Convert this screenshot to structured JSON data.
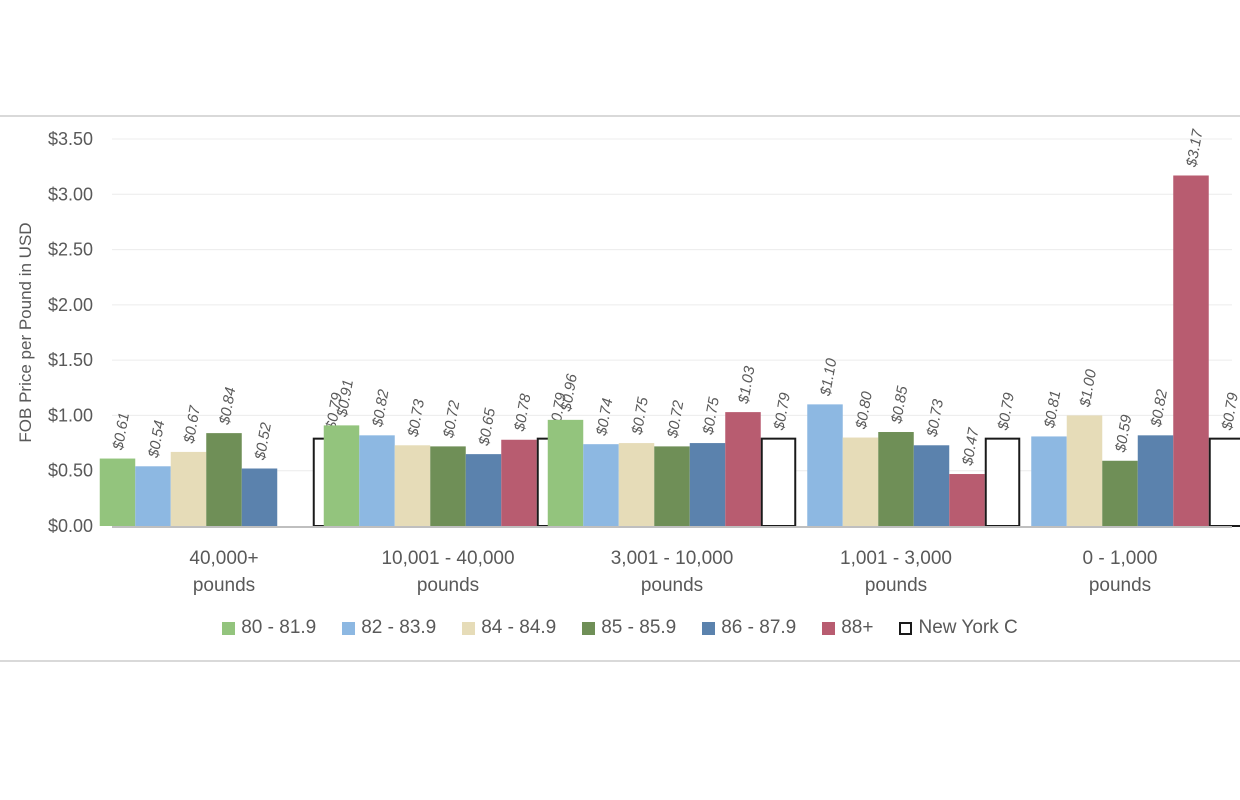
{
  "chart_data": {
    "type": "bar",
    "title": "",
    "xlabel": "",
    "ylabel": "FOB Price per Pound in USD",
    "ylim": [
      0,
      3.5
    ],
    "yticks": [
      "$0.00",
      "$0.50",
      "$1.00",
      "$1.50",
      "$2.00",
      "$2.50",
      "$3.00",
      "$3.50"
    ],
    "grid": true,
    "legend_position": "bottom",
    "categories": [
      [
        "40,000+",
        "pounds"
      ],
      [
        "10,001 - 40,000",
        "pounds"
      ],
      [
        "3,001 - 10,000",
        "pounds"
      ],
      [
        "1,001 - 3,000",
        "pounds"
      ],
      [
        "0 - 1,000",
        "pounds"
      ]
    ],
    "series": [
      {
        "name": "80 - 81.9",
        "color": "#93c47d",
        "values": [
          0.61,
          0.91,
          0.96,
          null,
          null
        ],
        "labels": [
          "$0.61",
          "$0.91",
          "$0.96",
          null,
          null
        ]
      },
      {
        "name": "82 - 83.9",
        "color": "#8db8e2",
        "values": [
          0.54,
          0.82,
          0.74,
          1.1,
          0.81
        ],
        "labels": [
          "$0.54",
          "$0.82",
          "$0.74",
          "$1.10",
          "$0.81"
        ]
      },
      {
        "name": "84 - 84.9",
        "color": "#e6dcb8",
        "values": [
          0.67,
          0.73,
          0.75,
          0.8,
          1.0
        ],
        "labels": [
          "$0.67",
          "$0.73",
          "$0.75",
          "$0.80",
          "$1.00"
        ]
      },
      {
        "name": "85 - 85.9",
        "color": "#6f8f57",
        "values": [
          0.84,
          0.72,
          0.72,
          0.85,
          0.59
        ],
        "labels": [
          "$0.84",
          "$0.72",
          "$0.72",
          "$0.85",
          "$0.59"
        ]
      },
      {
        "name": "86 - 87.9",
        "color": "#5b82ad",
        "values": [
          0.52,
          0.65,
          0.75,
          0.73,
          0.82
        ],
        "labels": [
          "$0.52",
          "$0.65",
          "$0.75",
          "$0.73",
          "$0.82"
        ]
      },
      {
        "name": "88+",
        "color": "#b85c70",
        "values": [
          null,
          0.78,
          1.03,
          0.47,
          3.17
        ],
        "labels": [
          null,
          "$0.78",
          "$1.03",
          "$0.47",
          "$3.17"
        ]
      },
      {
        "name": "New York C",
        "color": "#ffffff",
        "outline": "#1a1a1a",
        "values": [
          0.79,
          0.79,
          0.79,
          0.79,
          0.79
        ],
        "labels": [
          "$0.79",
          "$0.79",
          "$0.79",
          "$0.79",
          "$0.79"
        ]
      }
    ]
  }
}
